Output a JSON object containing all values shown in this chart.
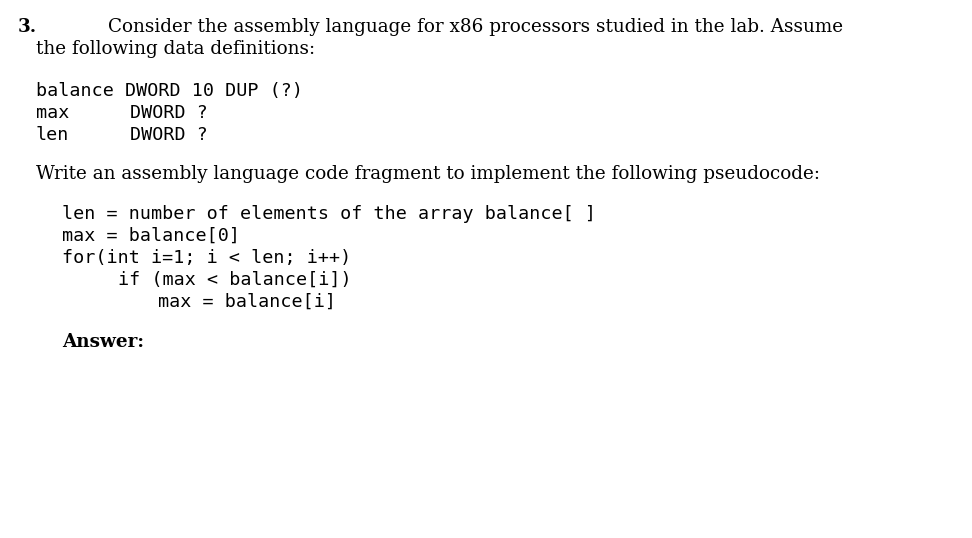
{
  "bg_color": "#ffffff",
  "question_number": "3.",
  "intro_line1": "Consider the assembly language for x86 processors studied in the lab. Assume",
  "intro_line2": "the following data definitions:",
  "data_def_line1": "balance DWORD 10 DUP (?)",
  "data_def_line2_label": "max",
  "data_def_line2_value": "DWORD ?",
  "data_def_line3_label": "len",
  "data_def_line3_value": "DWORD ?",
  "write_line": "Write an assembly language code fragment to implement the following pseudocode:",
  "pseudo_line1": "len = number of elements of the array balance[ ]",
  "pseudo_line2": "max = balance[0]",
  "pseudo_line3": "for(int i=1; i < len; i++)",
  "pseudo_line4": "if (max < balance[i])",
  "pseudo_line5": "max = balance[i]",
  "answer_label": "Answer:",
  "serif_size": 13.2,
  "mono_size": 13.2,
  "bold_size": 13.2,
  "fig_width": 9.72,
  "fig_height": 5.38,
  "dpi": 100
}
